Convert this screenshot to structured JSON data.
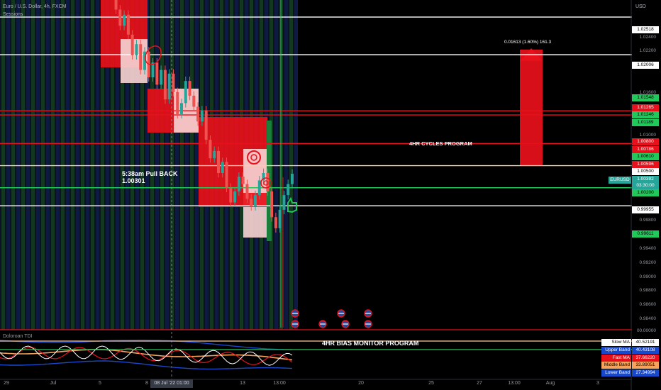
{
  "header": {
    "symbol_title": "Euro / U.S. Dollar, 4h, FXCM",
    "indicator_sessions": "Sessions"
  },
  "currency_label": "USD",
  "annotations": {
    "pullback_title": "5:38am Pull BACK",
    "pullback_price": "1.00301",
    "cycles_program": "4HR CYCLES PROGRAM",
    "measure": "0.01613 (1.60%) 161.3",
    "bias_monitor": "4HR BIAS MONITOR PROGRAM"
  },
  "subpane": {
    "title": "Doloroan TDI"
  },
  "price_axis": {
    "ticks": [
      "1.02400",
      "1.02200",
      "1.01600",
      "1.01000",
      "0.99800",
      "0.99400",
      "0.99200",
      "0.99000",
      "0.98800",
      "0.98600",
      "0.98400"
    ],
    "level_boxes": [
      {
        "value": "1.02518",
        "bg": "#ffffff",
        "fg": "#000000"
      },
      {
        "value": "1.02006",
        "bg": "#ffffff",
        "fg": "#000000"
      },
      {
        "value": "1.01548",
        "bg": "#21c95b",
        "fg": "#000000"
      },
      {
        "value": "1.01265",
        "bg": "#e8101a",
        "fg": "#ffffff"
      },
      {
        "value": "1.01246",
        "bg": "#21c95b",
        "fg": "#000000"
      },
      {
        "value": "1.01189",
        "bg": "#21c95b",
        "fg": "#000000"
      },
      {
        "value": "1.00800",
        "bg": "#e8101a",
        "fg": "#ffffff"
      },
      {
        "value": "1.00786",
        "bg": "#e8101a",
        "fg": "#ffffff"
      },
      {
        "value": "1.00610",
        "bg": "#21c95b",
        "fg": "#000000"
      },
      {
        "value": "1.00596",
        "bg": "#e8101a",
        "fg": "#ffffff"
      },
      {
        "value": "1.00500",
        "bg": "#ffffff",
        "fg": "#000000"
      },
      {
        "value": "1.00392",
        "bg": "#26a69a",
        "fg": "#ffffff"
      },
      {
        "value": "03:30:00",
        "bg": "#26a69a",
        "fg": "#ffffff"
      },
      {
        "value": "1.00200",
        "bg": "#21c95b",
        "fg": "#000000"
      },
      {
        "value": "0.99955",
        "bg": "#ffffff",
        "fg": "#000000"
      },
      {
        "value": "0.99611",
        "bg": "#21c95b",
        "fg": "#000000"
      }
    ],
    "symbol_tag": "EURUSD",
    "subpane_zero": "00.00000"
  },
  "time_axis": {
    "labels": [
      "29",
      "Jul",
      "5",
      "8",
      "13",
      "13:00",
      "20",
      "25",
      "27",
      "13:00",
      "Aug",
      "3"
    ],
    "crosshair_label": "08 Jul '22  01:00"
  },
  "tdi_legend": [
    {
      "name": "Slow MA",
      "value": "40.52191",
      "name_bg": "#ffffff",
      "name_fg": "#000000",
      "val_bg": "#ffffff",
      "val_fg": "#000000"
    },
    {
      "name": "Upper Band",
      "value": "40.43108",
      "name_bg": "#1848cc",
      "name_fg": "#ffffff",
      "val_bg": "#1848cc",
      "val_fg": "#ffffff"
    },
    {
      "name": "Fast MA",
      "value": "37.66220",
      "name_bg": "#e8101a",
      "name_fg": "#ffffff",
      "val_bg": "#e8101a",
      "val_fg": "#ffffff"
    },
    {
      "name": "Middle Band",
      "value": "33.89051",
      "name_bg": "#f5a25d",
      "name_fg": "#000000",
      "val_bg": "#f5a25d",
      "val_fg": "#000000"
    },
    {
      "name": "Lower Band",
      "value": "27.34994",
      "name_bg": "#1848cc",
      "name_fg": "#ffffff",
      "val_bg": "#1848cc",
      "val_fg": "#ffffff"
    }
  ],
  "chart_data": {
    "type": "candlestick",
    "title": "Euro / U.S. Dollar, 4h, FXCM",
    "ylim": [
      0.983,
      1.0275
    ],
    "horizontal_levels": [
      {
        "price": 1.02518,
        "color": "#ffffff"
      },
      {
        "price": 1.02006,
        "color": "#ffffff"
      },
      {
        "price": 1.01246,
        "color": "#e8101a"
      },
      {
        "price": 1.008,
        "color": "#e8101a"
      },
      {
        "price": 1.005,
        "color": "#ffcc99"
      },
      {
        "price": 1.002,
        "color": "#21c95b"
      },
      {
        "price": 0.99955,
        "color": "#ffffff"
      }
    ],
    "candles_close": [
      1.03,
      1.0285,
      1.0262,
      1.024,
      1.0255,
      1.0228,
      1.02,
      1.0215,
      1.018,
      1.0205,
      1.017,
      1.019,
      1.016,
      1.018,
      1.014,
      1.0175,
      1.015,
      1.012,
      1.0135,
      1.0165,
      1.0145,
      1.013,
      1.011,
      1.0125,
      1.0085,
      1.006,
      1.007,
      1.004,
      1.0055,
      1.002,
      1.0,
      1.0015,
      1.0035,
      1.0025,
      1.0005,
      0.9995,
      1.001,
      1.003,
      1.004,
      1.0015,
      0.998,
      0.9965,
      0.999,
      1.001,
      1.0025,
      1.0039
    ]
  }
}
